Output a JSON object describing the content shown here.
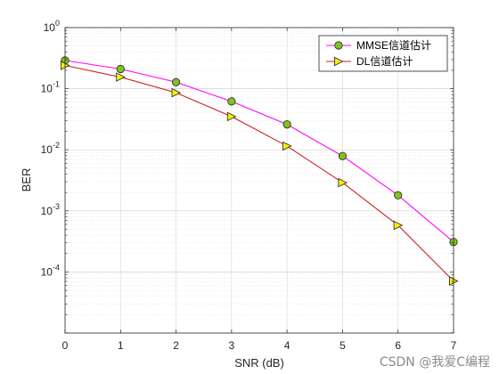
{
  "chart_data": {
    "type": "line",
    "xlabel": "SNR (dB)",
    "ylabel": "BER",
    "yscale": "log",
    "xlim": [
      0,
      7
    ],
    "ylim": [
      1e-05,
      1
    ],
    "x_ticks": [
      "0",
      "1",
      "2",
      "3",
      "4",
      "5",
      "6",
      "7"
    ],
    "y_tick_exponents": [
      "-4",
      "-3",
      "-2",
      "-1",
      "0"
    ],
    "y_tick_base": "10",
    "grid": true,
    "legend_position": "top-right",
    "series": [
      {
        "name": "MMSE信道估计",
        "color": "#ff00ff",
        "marker": "circle",
        "marker_fill": "#7fc31c",
        "x": [
          0,
          1,
          2,
          3,
          4,
          5,
          6,
          7
        ],
        "values": [
          0.29,
          0.21,
          0.128,
          0.062,
          0.026,
          0.0079,
          0.0018,
          0.00031
        ]
      },
      {
        "name": "DL信道估计",
        "color": "#cc1f1f",
        "marker": "triangle-right",
        "marker_fill": "#f0f00f",
        "x": [
          0,
          1,
          2,
          3,
          4,
          5,
          6,
          7
        ],
        "values": [
          0.24,
          0.155,
          0.086,
          0.035,
          0.0115,
          0.0029,
          0.00058,
          7.1e-05
        ]
      }
    ]
  },
  "watermark": "CSDN @我爱C编程"
}
